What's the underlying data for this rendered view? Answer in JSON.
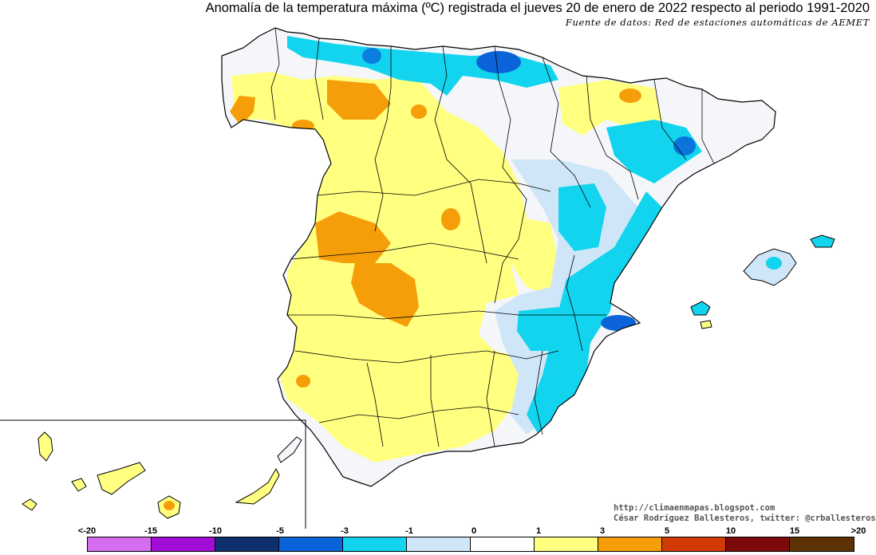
{
  "header": {
    "title": "Anomalía de la temperatura máxima (ºC) registrada el jueves 20 de enero de 2022 respecto al periodo 1991-2020",
    "subtitle": "Fuente de datos: Red de estaciones automáticas de AEMET"
  },
  "credits": {
    "line1": "http://climaenmapas.blogspot.com",
    "line2": "César Rodríguez Ballesteros, twitter: @crballesteros"
  },
  "legend": {
    "labels": [
      "<-20",
      "-15",
      "-10",
      "-5",
      "-3",
      "-1",
      "0",
      "1",
      "3",
      "5",
      "10",
      "15",
      ">20"
    ],
    "colors": [
      "#d66cf0",
      "#a10dd6",
      "#0d2f6e",
      "#0a63d8",
      "#13d4ee",
      "#cfe6f8",
      "#ffffff",
      "#ffff80",
      "#f59e0a",
      "#d23a05",
      "#7d0a0a",
      "#5c3205"
    ]
  },
  "colors": {
    "border": "#000000",
    "warm_light": "#ffff80",
    "warm_orange": "#f59e0a",
    "cold_light": "#cfe6f8",
    "cold_cyan": "#13d4ee",
    "cold_blue": "#0a63d8",
    "neutral": "#f4f6fa"
  }
}
